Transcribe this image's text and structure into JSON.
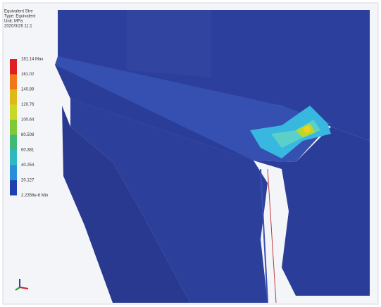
{
  "header": {
    "lines": [
      "Equivalent Stre",
      "Type: Equivalent",
      "Unit: MPa",
      "2020/3/26 11:1"
    ]
  },
  "legend": {
    "labels": [
      "181.14 Max",
      "161.02",
      "140.89",
      "120.76",
      "100.64",
      "80.508",
      "60.381",
      "40.254",
      "20.127",
      "2.2358e-6 Min"
    ]
  }
}
